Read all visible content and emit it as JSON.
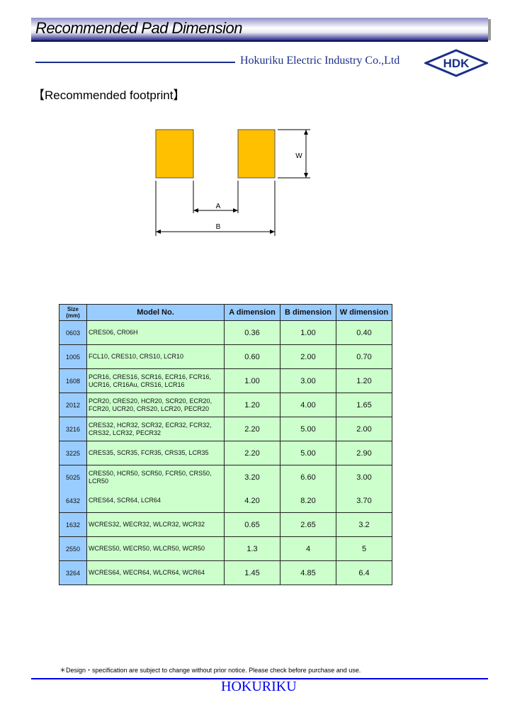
{
  "header": {
    "title": "Recommended Pad Dimension",
    "company": "Hokuriku Electric Industry Co.,Ltd",
    "logo_text": "HDK"
  },
  "section_title": "【Recommended footprint】",
  "diagram": {
    "pad_color": "#FFC000",
    "label_a": "A",
    "label_b": "B",
    "label_w": "W"
  },
  "table": {
    "headers": {
      "size": "Size\n(mm)",
      "model": "Model No.",
      "a": "A dimension",
      "b": "B dimension",
      "w": "W dimension"
    },
    "rows": [
      {
        "size": "0603",
        "model": "CRES06, CR06H",
        "a": "0.36",
        "b": "1.00",
        "w": "0.40"
      },
      {
        "size": "1005",
        "model": "FCL10, CRES10, CRS10, LCR10",
        "a": "0.60",
        "b": "2.00",
        "w": "0.70"
      },
      {
        "size": "1608",
        "model": "PCR16, CRES16, SCR16, ECR16, FCR16, UCR16, CR16Au, CRS16, LCR16",
        "a": "1.00",
        "b": "3.00",
        "w": "1.20"
      },
      {
        "size": "2012",
        "model": "PCR20, CRES20, HCR20, SCR20, ECR20, FCR20, UCR20, CRS20, LCR20, PECR20",
        "a": "1.20",
        "b": "4.00",
        "w": "1.65"
      },
      {
        "size": "3216",
        "model": "CRES32, HCR32, SCR32, ECR32, FCR32, CRS32, LCR32, PECR32",
        "a": "2.20",
        "b": "5.00",
        "w": "2.00"
      },
      {
        "size": "3225",
        "model": "CRES35, SCR35, FCR35, CRS35, LCR35",
        "a": "2.20",
        "b": "5.00",
        "w": "2.90"
      },
      {
        "size": "5025",
        "model": "CRES50, HCR50, SCR50, FCR50, CRS50, LCR50",
        "a": "3.20",
        "b": "6.60",
        "w": "3.00"
      },
      {
        "size": "6432",
        "model": "CRES64, SCR64, LCR64",
        "a": "4.20",
        "b": "8.20",
        "w": "3.70"
      },
      {
        "size": "1632",
        "model": "WCRES32, WECR32, WLCR32, WCR32",
        "a": "0.65",
        "b": "2.65",
        "w": "3.2"
      },
      {
        "size": "2550",
        "model": "WCRES50, WECR50, WLCR50, WCR50",
        "a": "1.3",
        "b": "4",
        "w": "5"
      },
      {
        "size": "3264",
        "model": "WCRES64, WECR64, WLCR64, WCR64",
        "a": "1.45",
        "b": "4.85",
        "w": "6.4"
      }
    ]
  },
  "footer": {
    "note": "＊Design・specification are subject to change without prior notice. Please check before purchase and use.",
    "brand": "HOKURIKU"
  }
}
